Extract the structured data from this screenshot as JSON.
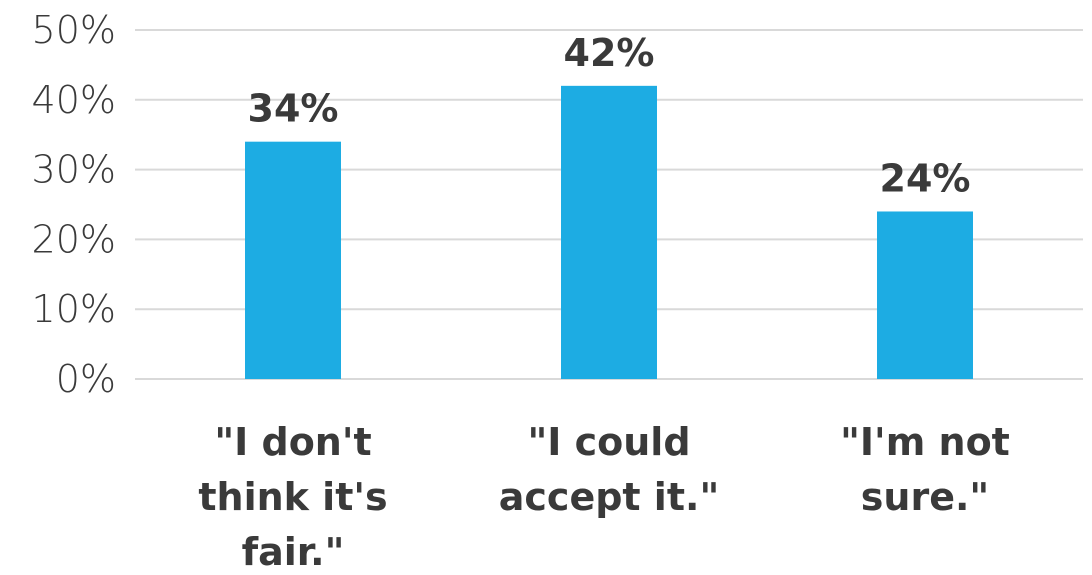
{
  "chart_data": {
    "type": "bar",
    "title": "",
    "xlabel": "",
    "ylabel": "",
    "categories": [
      [
        "\"I don't",
        "think it's",
        "fair.\""
      ],
      [
        "\"I could",
        "accept it.\""
      ],
      [
        "\"I'm not",
        "sure.\""
      ]
    ],
    "values": [
      34,
      42,
      24
    ],
    "value_labels": [
      "34%",
      "42%",
      "24%"
    ],
    "y_ticks": [
      0,
      10,
      20,
      30,
      40,
      50
    ],
    "y_tick_labels": [
      "0%",
      "10%",
      "20%",
      "30%",
      "40%",
      "50%"
    ],
    "ylim": [
      0,
      50
    ],
    "grid": true,
    "legend": "none",
    "colors": {
      "bar": "#1DACE3",
      "text": "#3a3a3a",
      "grid": "#d9d9d9"
    }
  }
}
